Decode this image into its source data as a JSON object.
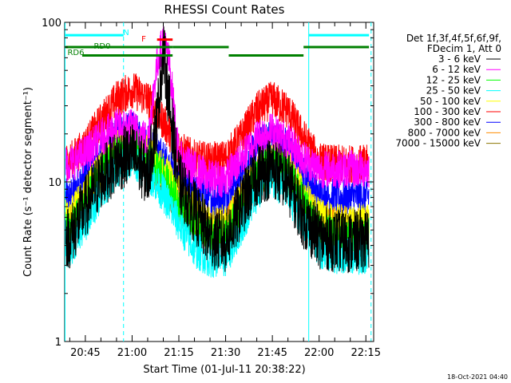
{
  "chart_data": {
    "type": "line",
    "title": "RHESSI Count Rates",
    "xlabel": "Start Time (01-Jul-11 20:38:22)",
    "ylabel": "Count Rate (s⁻¹ detector segment⁻¹)",
    "y_scale": "log",
    "ylim": [
      1,
      100
    ],
    "xlim": [
      "20:38:22",
      "22:17:30"
    ],
    "y_ticks": [
      {
        "value": 1,
        "label": "1"
      },
      {
        "value": 10,
        "label": "10"
      },
      {
        "value": 100,
        "label": "100"
      }
    ],
    "x_ticks": [
      {
        "value": "20:45",
        "label": "20:45"
      },
      {
        "value": "21:00",
        "label": "21:00"
      },
      {
        "value": "21:15",
        "label": "21:15"
      },
      {
        "value": "21:30",
        "label": "21:30"
      },
      {
        "value": "21:45",
        "label": "21:45"
      },
      {
        "value": "22:00",
        "label": "22:00"
      },
      {
        "value": "22:15",
        "label": "22:15"
      }
    ],
    "legend_header": [
      "Det 1f,3f,4f,5f,6f,9f,",
      "FDecim 1, Att 0"
    ],
    "legend_position": "right",
    "series": [
      {
        "name": "3 - 6 keV",
        "color": "#000000",
        "x": [
          "20:40",
          "20:45",
          "20:50",
          "20:55",
          "21:00",
          "21:05",
          "21:08",
          "21:10",
          "21:12",
          "21:15",
          "21:20",
          "21:25",
          "21:30",
          "21:35",
          "21:40",
          "21:45",
          "21:50",
          "21:55",
          "22:00",
          "22:05",
          "22:10",
          "22:15"
        ],
        "y": [
          4.5,
          7.0,
          10.5,
          13.5,
          15.0,
          11.0,
          25.0,
          68.0,
          30.0,
          10.0,
          6.5,
          4.5,
          4.2,
          7.0,
          11.0,
          12.5,
          10.0,
          6.0,
          4.5,
          4.3,
          4.2,
          4.3
        ]
      },
      {
        "name": "6 - 12 keV",
        "color": "#ff00ff",
        "x": [
          "20:40",
          "20:45",
          "20:50",
          "20:55",
          "21:00",
          "21:05",
          "21:08",
          "21:10",
          "21:12",
          "21:15",
          "21:20",
          "21:25",
          "21:30",
          "21:35",
          "21:40",
          "21:45",
          "21:50",
          "21:55",
          "22:00",
          "22:05",
          "22:10",
          "22:15"
        ],
        "y": [
          13.0,
          15.0,
          19.0,
          22.0,
          22.0,
          18.0,
          55.0,
          78.0,
          55.0,
          14.0,
          12.0,
          10.5,
          10.5,
          14.0,
          19.0,
          21.0,
          18.0,
          14.0,
          12.0,
          12.0,
          12.0,
          12.0
        ]
      },
      {
        "name": "12 - 25 keV",
        "color": "#00ff00",
        "x": [
          "20:40",
          "20:45",
          "20:50",
          "20:55",
          "21:00",
          "21:05",
          "21:10",
          "21:15",
          "21:20",
          "21:25",
          "21:30",
          "21:35",
          "21:40",
          "21:45",
          "21:50",
          "21:55",
          "22:00",
          "22:05",
          "22:10",
          "22:15"
        ],
        "y": [
          5.0,
          7.5,
          11.0,
          15.0,
          17.0,
          14.0,
          11.0,
          7.5,
          5.5,
          4.5,
          4.5,
          7.0,
          11.0,
          13.5,
          11.5,
          7.5,
          5.0,
          4.6,
          4.5,
          4.6
        ]
      },
      {
        "name": "25 - 50 keV",
        "color": "#00ffff",
        "x": [
          "20:40",
          "20:45",
          "20:50",
          "20:55",
          "21:00",
          "21:05",
          "21:10",
          "21:15",
          "21:20",
          "21:25",
          "21:30",
          "21:35",
          "21:40",
          "21:45",
          "21:50",
          "21:55",
          "22:00",
          "22:05",
          "22:10",
          "22:15"
        ],
        "y": [
          3.8,
          5.5,
          8.5,
          12.0,
          14.0,
          11.5,
          8.5,
          5.5,
          3.8,
          3.3,
          3.3,
          5.2,
          8.5,
          10.5,
          8.5,
          5.5,
          3.8,
          3.5,
          3.4,
          3.5
        ]
      },
      {
        "name": "50 - 100 keV",
        "color": "#ffff00",
        "x": [
          "20:40",
          "20:45",
          "20:50",
          "20:55",
          "21:00",
          "21:05",
          "21:10",
          "21:15",
          "21:20",
          "21:25",
          "21:30",
          "21:35",
          "21:40",
          "21:45",
          "21:50",
          "21:55",
          "22:00",
          "22:05",
          "22:10",
          "22:15"
        ],
        "y": [
          6.0,
          8.5,
          12.5,
          16.5,
          18.0,
          15.0,
          12.0,
          8.5,
          6.5,
          5.5,
          5.5,
          8.0,
          12.0,
          14.5,
          12.5,
          8.5,
          6.0,
          5.6,
          5.5,
          5.6
        ]
      },
      {
        "name": "100 - 300 keV",
        "color": "#ff0000",
        "x": [
          "20:40",
          "20:45",
          "20:50",
          "20:55",
          "21:00",
          "21:05",
          "21:10",
          "21:15",
          "21:20",
          "21:25",
          "21:30",
          "21:35",
          "21:40",
          "21:45",
          "21:50",
          "21:55",
          "22:00",
          "22:05",
          "22:10",
          "22:15"
        ],
        "y": [
          13.5,
          17.0,
          24.0,
          33.0,
          38.0,
          33.0,
          24.0,
          16.0,
          14.0,
          13.5,
          14.0,
          19.0,
          28.0,
          33.0,
          28.0,
          19.0,
          13.5,
          13.0,
          13.0,
          13.0
        ]
      },
      {
        "name": "300 - 800 keV",
        "color": "#0000ff",
        "x": [
          "20:40",
          "20:45",
          "20:50",
          "20:55",
          "21:00",
          "21:05",
          "21:10",
          "21:15",
          "21:20",
          "21:25",
          "21:30",
          "21:35",
          "21:40",
          "21:45",
          "21:50",
          "21:55",
          "22:00",
          "22:05",
          "22:10",
          "22:15"
        ],
        "y": [
          8.0,
          11.0,
          15.0,
          20.0,
          21.0,
          18.0,
          14.0,
          10.0,
          8.5,
          8.0,
          8.2,
          11.5,
          16.5,
          19.5,
          16.5,
          11.0,
          8.2,
          8.0,
          8.0,
          8.2
        ]
      },
      {
        "name": "800 - 7000 keV",
        "color": "#ff8c00",
        "x": [
          "20:40",
          "20:45",
          "20:50",
          "20:55",
          "21:00",
          "21:05",
          "21:10",
          "21:15",
          "21:20",
          "21:25",
          "21:30",
          "21:35",
          "21:40",
          "21:45",
          "21:50",
          "21:55",
          "22:00",
          "22:05",
          "22:10",
          "22:15"
        ],
        "y": [
          5.5,
          7.5,
          11.0,
          14.5,
          16.0,
          13.5,
          10.5,
          7.5,
          6.0,
          5.2,
          5.3,
          7.5,
          11.0,
          13.0,
          11.0,
          7.5,
          5.6,
          5.4,
          5.3,
          5.4
        ]
      },
      {
        "name": "7000 - 15000 keV",
        "color": "#8b7500",
        "x": [
          "20:40",
          "20:45",
          "20:50",
          "20:55",
          "21:00",
          "21:05",
          "21:10",
          "21:15",
          "21:20",
          "21:25",
          "21:30",
          "21:35",
          "21:40",
          "21:45",
          "21:50",
          "21:55",
          "22:00",
          "22:05",
          "22:10",
          "22:15"
        ],
        "y": [
          5.0,
          7.0,
          10.5,
          14.0,
          15.5,
          13.0,
          10.0,
          7.0,
          5.6,
          5.0,
          5.0,
          7.2,
          10.5,
          12.5,
          10.5,
          7.0,
          5.2,
          5.0,
          5.0,
          5.0
        ]
      }
    ],
    "vertical_markers": [
      {
        "x": "20:38:30",
        "style": "solid",
        "color": "#00ffff"
      },
      {
        "x": "20:57:15",
        "style": "dashed",
        "color": "#00ffff"
      },
      {
        "x": "21:56:40",
        "style": "solid",
        "color": "#00ffff"
      },
      {
        "x": "22:16:40",
        "style": "dashed",
        "color": "#00ffff"
      }
    ],
    "interval_bars": [
      {
        "label": "N",
        "color": "#00ffff",
        "y": 83,
        "segments": [
          [
            "20:38:30",
            "20:57:15"
          ],
          [
            "21:56:40",
            "22:16:00"
          ]
        ]
      },
      {
        "label": "F",
        "color": "#ff0000",
        "y": 78,
        "segments": [
          [
            "21:08:00",
            "21:13:00"
          ]
        ]
      },
      {
        "label": "RD0",
        "color": "#008000",
        "y": 70,
        "segments": [
          [
            "20:38:30",
            "21:13:00"
          ],
          [
            "21:13:00",
            "21:31:00"
          ],
          [
            "21:55:00",
            "22:16:00"
          ]
        ]
      },
      {
        "label": "RD6",
        "color": "#008000",
        "y": 62,
        "segments": [
          [
            "20:44:00",
            "21:13:00"
          ],
          [
            "21:31:00",
            "21:55:00"
          ]
        ]
      }
    ],
    "grid": false
  },
  "footer": {
    "date_stamp": "18-Oct-2021 04:40"
  }
}
